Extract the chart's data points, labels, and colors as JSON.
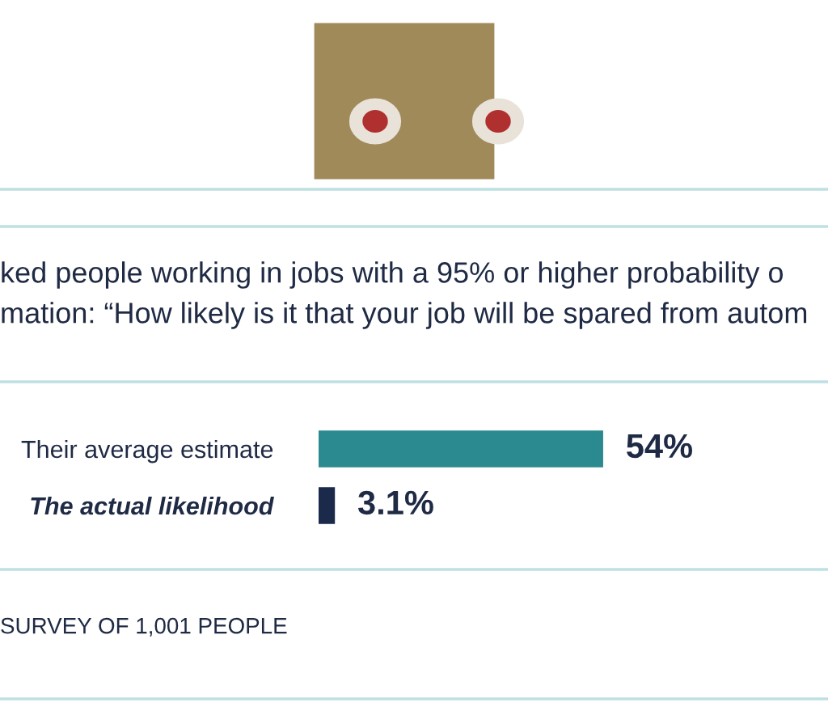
{
  "chart_data": {
    "type": "bar",
    "orientation": "horizontal",
    "title": "ked people working in jobs with a 95% or higher probability o",
    "subtitle": "mation: “How likely is it that your job will be spared from autom",
    "categories": [
      "Their average estimate",
      "The actual likelihood"
    ],
    "values": [
      54,
      3.1
    ],
    "colors": [
      "#2a8a8f",
      "#1b2a4a"
    ],
    "value_labels": [
      "54%",
      "3.1%"
    ],
    "annotations": [
      "SURVEY OF 1,001 PEOPLE"
    ],
    "grid": false,
    "legend": false
  }
}
